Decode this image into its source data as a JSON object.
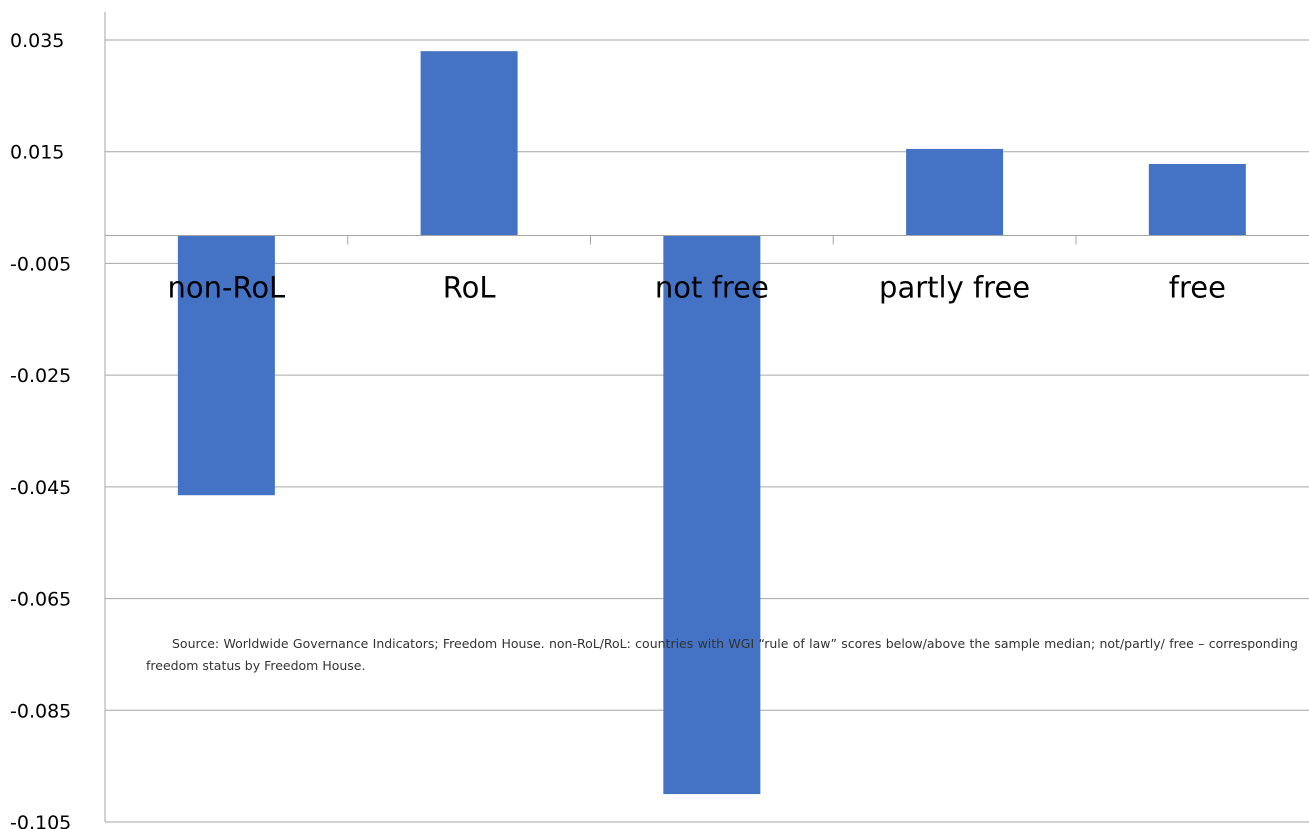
{
  "chart_data": {
    "type": "bar",
    "categories": [
      "non-RoL",
      "RoL",
      "not free",
      "partly free",
      "free"
    ],
    "values": [
      -0.0465,
      0.033,
      -0.1,
      0.0155,
      0.0128
    ],
    "ylim": [
      -0.105,
      0.035
    ],
    "yticks": [
      "0.035",
      "0.015",
      "-0.005",
      "-0.025",
      "-0.045",
      "-0.065",
      "-0.085",
      "-0.105"
    ],
    "ytick_values": [
      0.035,
      0.015,
      -0.005,
      -0.025,
      -0.045,
      -0.065,
      -0.085,
      -0.105
    ],
    "grid": true,
    "bar_color": "#4472C4",
    "grid_color": "#A6A6A6",
    "annotation": "Source: Worldwide Governance Indicators; Freedom House. non-RoL/RoL: countries with WGI “rule of law” scores below/above the sample median; not/partly/   free – corresponding freedom status by Freedom House."
  }
}
